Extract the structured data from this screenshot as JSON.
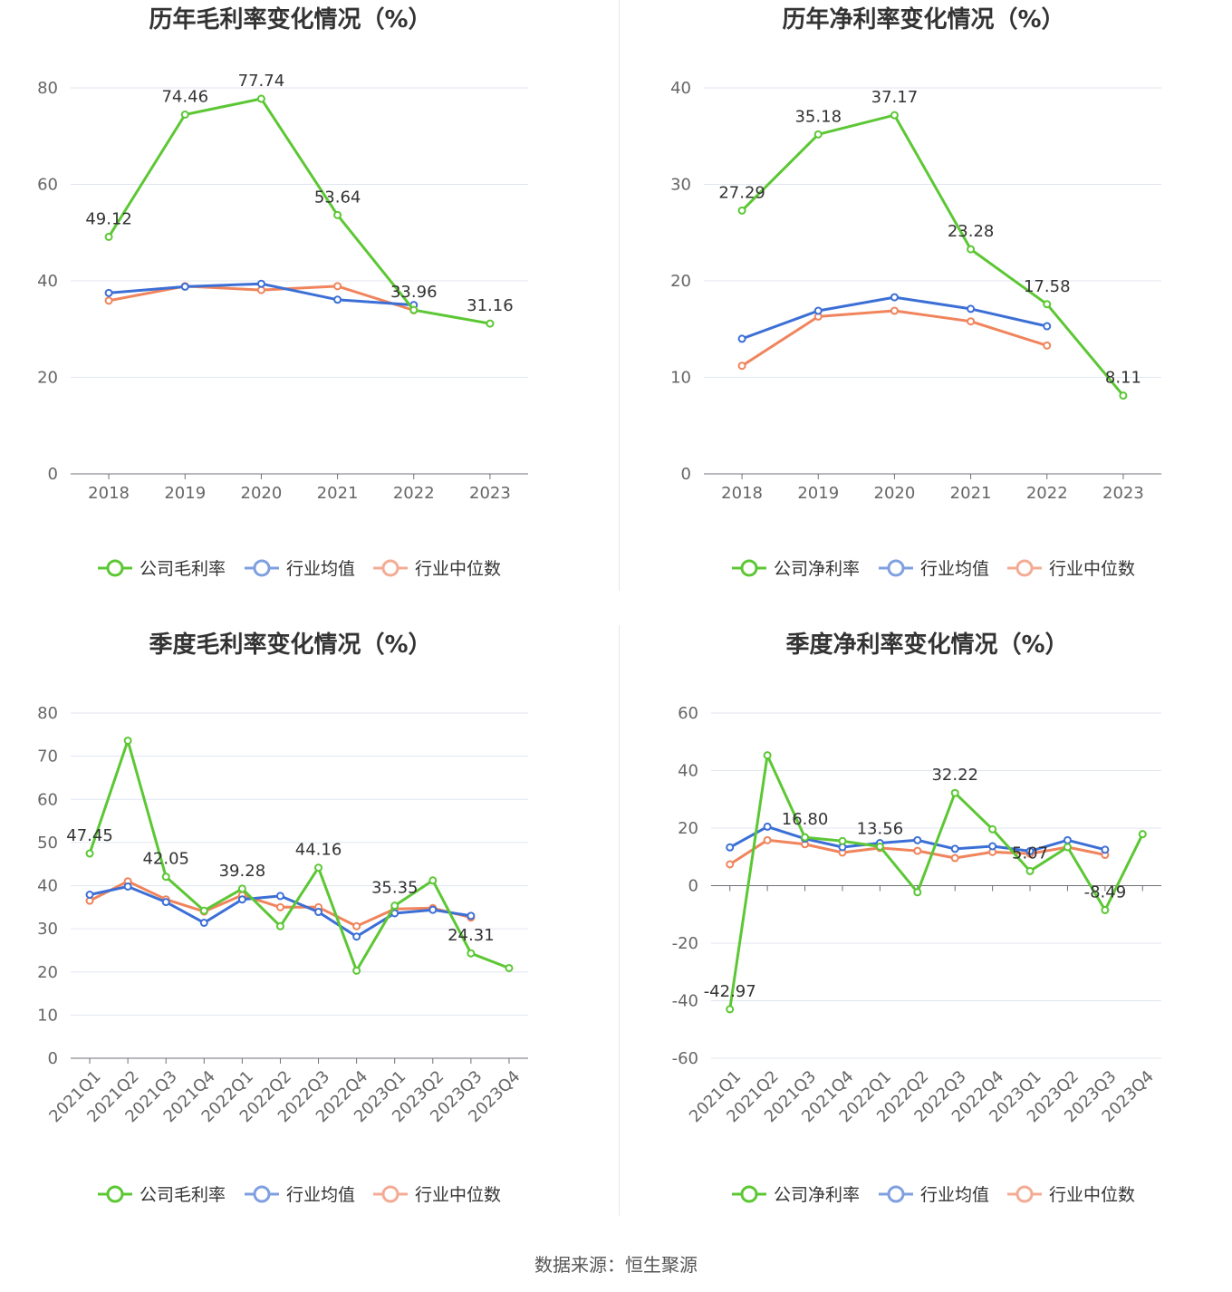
{
  "source": "数据来源：恒生聚源",
  "legend_labels": {
    "gross": [
      "公司毛利率",
      "行业均值",
      "行业中位数"
    ],
    "net": [
      "公司净利率",
      "行业均值",
      "行业中位数"
    ]
  },
  "colors": {
    "company": "#5cc734",
    "industry_mean": "#3c6fd6",
    "industry_median": "#f0845c",
    "legend_mean": "#7f9fe0",
    "legend_median": "#f4ab94"
  },
  "chart_data": [
    {
      "type": "line",
      "title": "历年毛利率变化情况（%）",
      "categories": [
        "2018",
        "2019",
        "2020",
        "2021",
        "2022",
        "2023"
      ],
      "ylim": [
        0,
        80
      ],
      "yticks": [
        0,
        20,
        40,
        60,
        80
      ],
      "grid": true,
      "legend_position": "bottom",
      "series": [
        {
          "name": "公司毛利率",
          "values": [
            49.12,
            74.46,
            77.74,
            53.64,
            33.96,
            31.16
          ],
          "labels": [
            "49.12",
            "74.46",
            "77.74",
            "53.64",
            "33.96",
            "31.16"
          ]
        },
        {
          "name": "行业均值",
          "values": [
            37.5,
            38.8,
            39.4,
            36.1,
            35.0,
            null
          ]
        },
        {
          "name": "行业中位数",
          "values": [
            35.9,
            38.9,
            38.1,
            38.9,
            33.9,
            null
          ]
        }
      ]
    },
    {
      "type": "line",
      "title": "历年净利率变化情况（%）",
      "categories": [
        "2018",
        "2019",
        "2020",
        "2021",
        "2022",
        "2023"
      ],
      "ylim": [
        0,
        40
      ],
      "yticks": [
        0,
        10,
        20,
        30,
        40
      ],
      "grid": true,
      "legend_position": "bottom",
      "series": [
        {
          "name": "公司净利率",
          "values": [
            27.29,
            35.18,
            37.17,
            23.28,
            17.58,
            8.11
          ],
          "labels": [
            "27.29",
            "35.18",
            "37.17",
            "23.28",
            "17.58",
            "8.11"
          ]
        },
        {
          "name": "行业均值",
          "values": [
            14.0,
            16.9,
            18.3,
            17.1,
            15.3,
            null
          ]
        },
        {
          "name": "行业中位数",
          "values": [
            11.2,
            16.3,
            16.9,
            15.8,
            13.3,
            null
          ]
        }
      ]
    },
    {
      "type": "line",
      "title": "季度毛利率变化情况（%）",
      "categories": [
        "2021Q1",
        "2021Q2",
        "2021Q3",
        "2021Q4",
        "2022Q1",
        "2022Q2",
        "2022Q3",
        "2022Q4",
        "2023Q1",
        "2023Q2",
        "2023Q3",
        "2023Q4"
      ],
      "ylim": [
        0,
        80
      ],
      "yticks": [
        0,
        10,
        20,
        30,
        40,
        50,
        60,
        70,
        80
      ],
      "grid": true,
      "legend_position": "bottom",
      "series": [
        {
          "name": "公司毛利率",
          "values": [
            47.45,
            73.6,
            42.05,
            34.2,
            39.28,
            30.6,
            44.16,
            20.3,
            35.35,
            41.2,
            24.31,
            20.9
          ],
          "labels": [
            "47.45",
            "",
            "42.05",
            "",
            "39.28",
            "",
            "44.16",
            "",
            "35.35",
            "",
            "24.31",
            ""
          ]
        },
        {
          "name": "行业均值",
          "values": [
            37.9,
            39.8,
            36.2,
            31.4,
            36.8,
            37.6,
            33.9,
            28.2,
            33.6,
            34.4,
            33.0,
            null
          ]
        },
        {
          "name": "行业中位数",
          "values": [
            36.5,
            41.0,
            36.8,
            34.0,
            37.8,
            35.0,
            35.0,
            30.6,
            34.6,
            34.8,
            32.6,
            null
          ]
        }
      ]
    },
    {
      "type": "line",
      "title": "季度净利率变化情况（%）",
      "categories": [
        "2021Q1",
        "2021Q2",
        "2021Q3",
        "2021Q4",
        "2022Q1",
        "2022Q2",
        "2022Q3",
        "2022Q4",
        "2023Q1",
        "2023Q2",
        "2023Q3",
        "2023Q4"
      ],
      "ylim": [
        -60,
        60
      ],
      "yticks": [
        -60,
        -40,
        -20,
        0,
        20,
        40,
        60
      ],
      "grid": true,
      "legend_position": "bottom",
      "series": [
        {
          "name": "公司净利率",
          "values": [
            -42.97,
            45.3,
            16.8,
            15.5,
            13.56,
            -2.3,
            32.22,
            19.6,
            5.07,
            13.4,
            -8.49,
            17.9
          ],
          "labels": [
            "-42.97",
            "",
            "16.80",
            "",
            "13.56",
            "",
            "32.22",
            "",
            "5.07",
            "",
            "-8.49",
            ""
          ]
        },
        {
          "name": "行业均值",
          "values": [
            13.3,
            20.5,
            16.3,
            13.4,
            14.8,
            15.8,
            12.8,
            13.7,
            12.0,
            15.8,
            12.5,
            null
          ]
        },
        {
          "name": "行业中位数",
          "values": [
            7.4,
            15.8,
            14.4,
            11.5,
            13.1,
            12.1,
            9.6,
            11.7,
            11.1,
            13.4,
            10.7,
            null
          ]
        }
      ]
    }
  ]
}
